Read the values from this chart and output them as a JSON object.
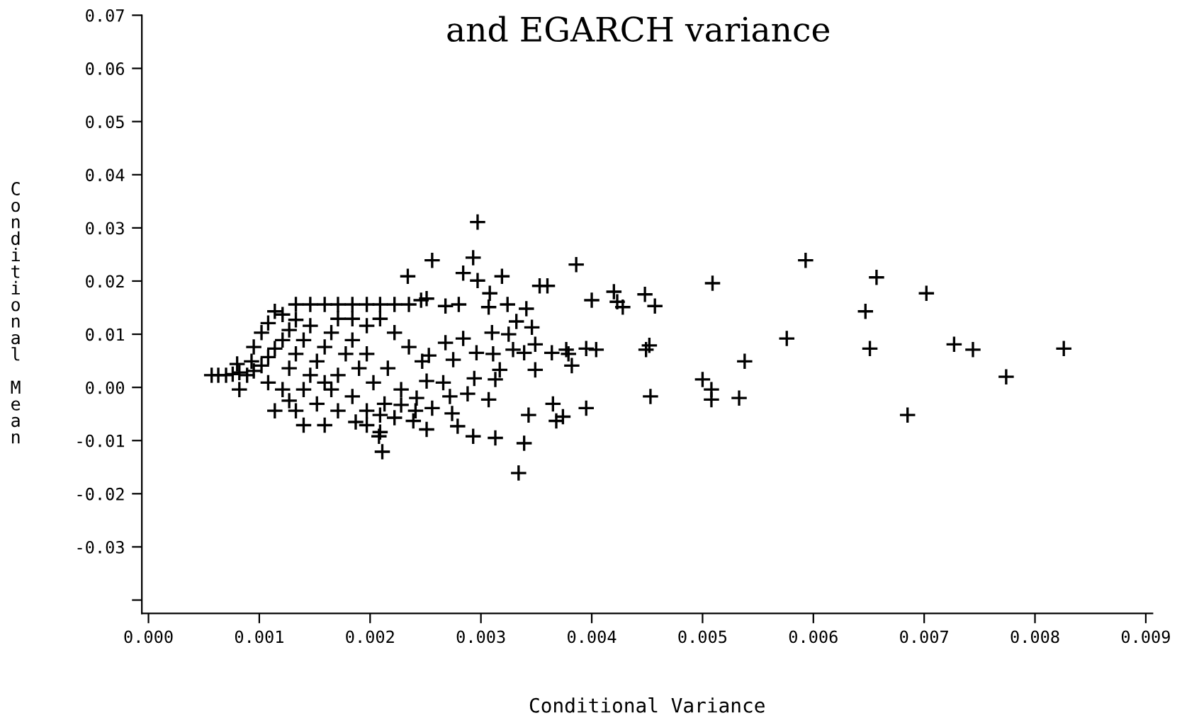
{
  "chart_data": {
    "type": "scatter",
    "title": "and EGARCH variance",
    "xlabel": "Conditional Variance",
    "ylabel": "Conditional Mean",
    "marker": "cross",
    "grid": false,
    "color": "#000000",
    "xlim": [
      -6e-05,
      0.00906
    ],
    "ylim": [
      -0.0425,
      0.07
    ],
    "xticks": [
      {
        "value": 0,
        "label": "0.000"
      },
      {
        "value": 0.001,
        "label": "0.001"
      },
      {
        "value": 0.002,
        "label": "0.002"
      },
      {
        "value": 0.003,
        "label": "0.003"
      },
      {
        "value": 0.004,
        "label": "0.004"
      },
      {
        "value": 0.005,
        "label": "0.005"
      },
      {
        "value": 0.006,
        "label": "0.006"
      },
      {
        "value": 0.007,
        "label": "0.007"
      },
      {
        "value": 0.008,
        "label": "0.008"
      },
      {
        "value": 0.009,
        "label": "0.009"
      }
    ],
    "yticks": [
      {
        "value": -0.04,
        "label": null
      },
      -0.03,
      -0.02,
      -0.01,
      {
        "value": 0,
        "label": "0.00"
      },
      0.01,
      0.02,
      0.03,
      0.04,
      0.05,
      0.06,
      0.07
    ],
    "x": [
      0.00297,
      0.00256,
      0.00293,
      0.00234,
      0.00284,
      0.00319,
      0.00297,
      0.00386,
      0.00353,
      0.0036,
      0.00308,
      0.004,
      0.0042,
      0.00324,
      0.00341,
      0.00307,
      0.0028,
      0.00268,
      0.00246,
      0.00251,
      0.00332,
      0.00346,
      0.0031,
      0.00284,
      0.00268,
      0.00325,
      0.00349,
      0.00329,
      0.00339,
      0.00364,
      0.00377,
      0.00379,
      0.00395,
      0.00404,
      0.00311,
      0.00296,
      0.00275,
      0.00253,
      0.00317,
      0.00349,
      0.00382,
      0.00294,
      0.00313,
      0.00251,
      0.00266,
      0.00288,
      0.00272,
      0.00242,
      0.00228,
      0.00307,
      0.00365,
      0.00395,
      0.00343,
      0.00374,
      0.00368,
      0.00339,
      0.00313,
      0.00293,
      0.00279,
      0.00251,
      0.00256,
      0.00274,
      0.00213,
      0.00187,
      0.00209,
      0.00208,
      0.00211,
      0.00334,
      0.00239,
      0.00197,
      0.00593,
      0.00657,
      0.00702,
      0.00647,
      0.00576,
      0.00651,
      0.00727,
      0.00744,
      0.00826,
      0.00774,
      0.00685,
      0.00538,
      0.00533,
      0.005,
      0.00508,
      0.00508,
      0.00509,
      0.00453,
      0.00449,
      0.00452,
      0.00448,
      0.00457,
      0.00423,
      0.00428,
      0.00057,
      0.00063,
      0.0007,
      0.00076,
      0.00082,
      0.00089,
      0.00095,
      0.0008,
      0.00102,
      0.00108,
      0.00114,
      0.00121,
      0.00127,
      0.00133,
      0.00121,
      0.00108,
      0.00114,
      0.00102,
      0.00095,
      0.00093,
      0.00108,
      0.00121,
      0.00114,
      0.00127,
      0.00133,
      0.0014,
      0.00146,
      0.00152,
      0.00159,
      0.00165,
      0.00171,
      0.00146,
      0.00159,
      0.00171,
      0.00184,
      0.00197,
      0.00209,
      0.00222,
      0.00235,
      0.00133,
      0.0014,
      0.00178,
      0.0019,
      0.00203,
      0.00184,
      0.00171,
      0.00159,
      0.00197,
      0.00209,
      0.00152,
      0.00171,
      0.00184,
      0.00197,
      0.00209,
      0.00222,
      0.00235,
      0.00247,
      0.00216,
      0.00228,
      0.00241,
      0.00222,
      0.00133,
      0.00146,
      0.00184,
      0.00165,
      0.00082,
      0.0014,
      0.00127,
      0.00159,
      0.00197
    ],
    "values": [
      0.0311,
      0.0239,
      0.0244,
      0.0209,
      0.0215,
      0.0209,
      0.0201,
      0.0231,
      0.0191,
      0.0191,
      0.0177,
      0.0164,
      0.018,
      0.0156,
      0.0148,
      0.0151,
      0.0156,
      0.0153,
      0.0164,
      0.0167,
      0.0124,
      0.0113,
      0.0103,
      0.0092,
      0.0084,
      0.01,
      0.0081,
      0.0071,
      0.0065,
      0.0065,
      0.0071,
      0.0063,
      0.0073,
      0.0071,
      0.0063,
      0.0065,
      0.0052,
      0.006,
      0.0033,
      0.0033,
      0.0041,
      0.0017,
      0.0015,
      0.0012,
      0.0009,
      -0.0012,
      -0.0017,
      -0.002,
      -0.0033,
      -0.0023,
      -0.0031,
      -0.0039,
      -0.0052,
      -0.0055,
      -0.0063,
      -0.0105,
      -0.0095,
      -0.0092,
      -0.0073,
      -0.0079,
      -0.0039,
      -0.0049,
      -0.0031,
      -0.0065,
      -0.0052,
      -0.0092,
      -0.0121,
      -0.0161,
      -0.0063,
      -0.0044,
      0.0239,
      0.0207,
      0.0177,
      0.0143,
      0.0092,
      0.0073,
      0.0081,
      0.0071,
      0.0073,
      0.002,
      -0.0052,
      0.0049,
      -0.002,
      0.0015,
      -0.0004,
      -0.0023,
      0.0196,
      -0.0017,
      0.0071,
      0.0079,
      0.0175,
      0.0153,
      0.0161,
      0.0151,
      0.0023,
      0.0023,
      0.0023,
      0.0025,
      0.0028,
      0.0023,
      0.0031,
      0.0044,
      0.0041,
      0.0057,
      0.0073,
      0.0089,
      0.0108,
      0.0127,
      0.0137,
      0.0121,
      0.0143,
      0.0103,
      0.0076,
      0.0049,
      0.0009,
      -0.0004,
      -0.0044,
      -0.0025,
      -0.0044,
      -0.0004,
      0.0023,
      0.0049,
      0.0076,
      0.0103,
      0.0129,
      0.0156,
      0.0156,
      0.0156,
      0.0156,
      0.0156,
      0.0156,
      0.0156,
      0.0156,
      0.0156,
      0.0089,
      0.0063,
      0.0036,
      0.0009,
      -0.0017,
      -0.0044,
      -0.0071,
      -0.0071,
      -0.0084,
      -0.0031,
      0.0023,
      0.0089,
      0.0116,
      0.0129,
      0.0103,
      0.0076,
      0.0049,
      0.0036,
      -0.0004,
      -0.0044,
      -0.0057,
      0.0063,
      0.0116,
      0.0129,
      -0.0004,
      -0.0004,
      -0.0071,
      0.0036,
      0.0009,
      0.0063
    ]
  }
}
